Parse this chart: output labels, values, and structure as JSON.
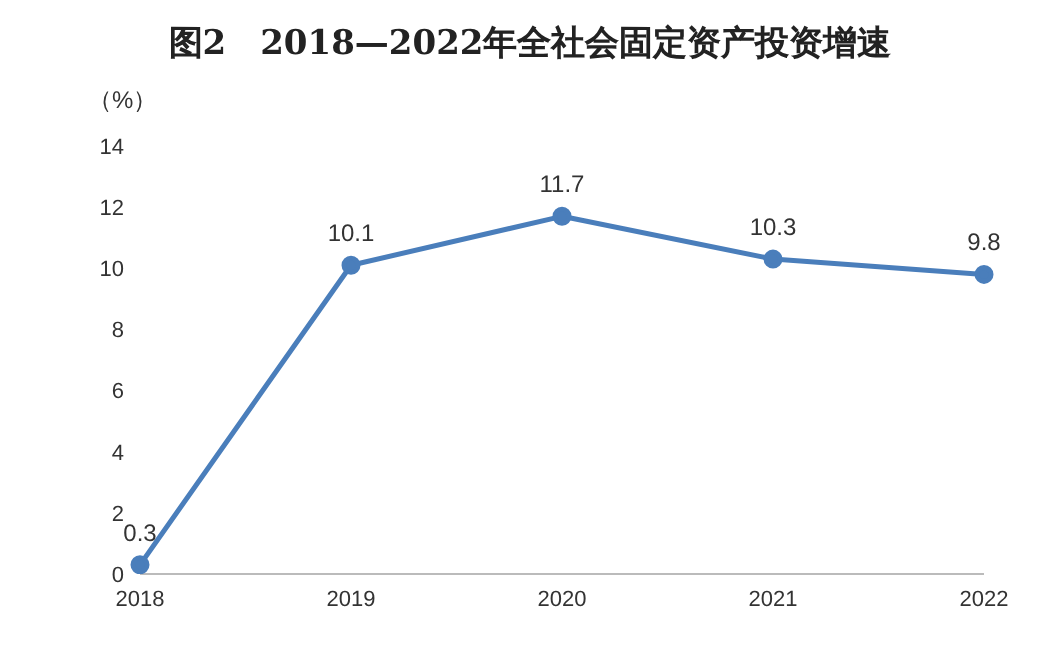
{
  "chart_data": {
    "type": "line",
    "title": "图2　2018—2022年全社会固定资产投资增速",
    "ylabel": "（%）",
    "categories": [
      "2018",
      "2019",
      "2020",
      "2021",
      "2022"
    ],
    "series": [
      {
        "color": "#4a7ebb",
        "values": [
          0.3,
          10.1,
          11.7,
          10.3,
          9.8
        ]
      }
    ],
    "ylim": [
      0,
      14
    ],
    "yticks": [
      0,
      2,
      4,
      6,
      8,
      10,
      12,
      14
    ],
    "grid": false,
    "legend": false,
    "marker": "circle",
    "line_style": "solid",
    "data_labels": true
  }
}
